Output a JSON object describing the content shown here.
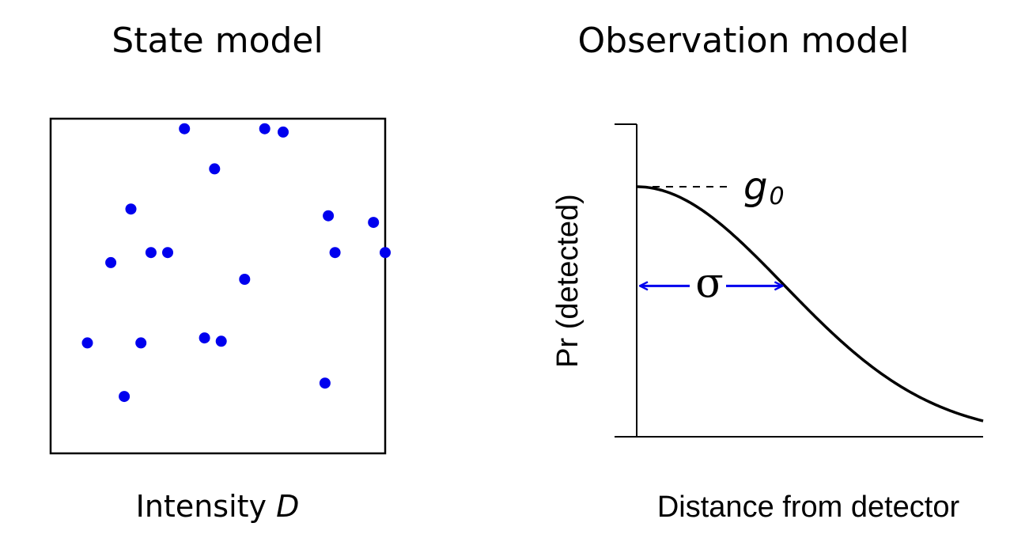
{
  "state_model": {
    "title": "State model",
    "caption_prefix": "Intensity ",
    "caption_symbol": "D",
    "point_color": "#0000ee",
    "points": [
      [
        0.4,
        0.03
      ],
      [
        0.64,
        0.03
      ],
      [
        0.695,
        0.04
      ],
      [
        0.49,
        0.15
      ],
      [
        0.24,
        0.27
      ],
      [
        0.83,
        0.29
      ],
      [
        0.965,
        0.31
      ],
      [
        0.18,
        0.43
      ],
      [
        0.3,
        0.4
      ],
      [
        0.35,
        0.4
      ],
      [
        0.85,
        0.4
      ],
      [
        1.0,
        0.4
      ],
      [
        0.58,
        0.48
      ],
      [
        0.11,
        0.67
      ],
      [
        0.27,
        0.67
      ],
      [
        0.46,
        0.655
      ],
      [
        0.51,
        0.665
      ],
      [
        0.82,
        0.79
      ],
      [
        0.22,
        0.83
      ]
    ]
  },
  "observation_model": {
    "title": "Observation model",
    "xlabel": "Distance from detector",
    "ylabel": "Pr (detected)",
    "g0_symbol": "g",
    "g0_subscript": "0",
    "sigma_symbol": "σ",
    "arrow_color": "#0000ee",
    "g0": 0.8,
    "sigma": 1.0,
    "x_range": [
      0,
      2.35
    ],
    "y_range": [
      0,
      1.0
    ]
  }
}
